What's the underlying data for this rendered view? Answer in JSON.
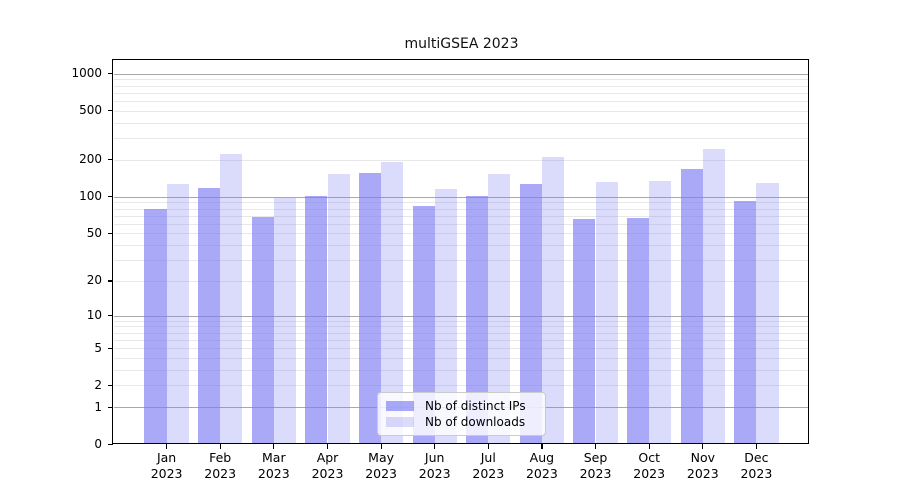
{
  "chart_data": {
    "type": "bar",
    "title": "multiGSEA 2023",
    "categories": [
      "Jan",
      "Feb",
      "Mar",
      "Apr",
      "May",
      "Jun",
      "Jul",
      "Aug",
      "Sep",
      "Oct",
      "Nov",
      "Dec"
    ],
    "year_label": "2023",
    "series": [
      {
        "name": "Nb of distinct IPs",
        "color": "rgba(124,124,245,0.66)",
        "values": [
          80,
          118,
          68,
          101,
          155,
          84,
          101,
          128,
          66,
          67,
          168,
          93
        ]
      },
      {
        "name": "Nb of downloads",
        "color": "rgba(124,124,245,0.28)",
        "values": [
          127,
          222,
          98,
          152,
          191,
          116,
          154,
          209,
          132,
          134,
          247,
          130
        ]
      }
    ],
    "y_scale": "log1p",
    "y_ticks": [
      0,
      1,
      2,
      5,
      10,
      20,
      50,
      100,
      200,
      500,
      1000
    ],
    "ylim": [
      0,
      1281
    ],
    "xlabel": "",
    "ylabel": "",
    "grid": true,
    "legend_position": "lower center",
    "colors": {
      "grid_major": "#a8a8a8",
      "grid_minor": "#e8e8e8",
      "axis": "#000000",
      "background": "#ffffff"
    }
  }
}
